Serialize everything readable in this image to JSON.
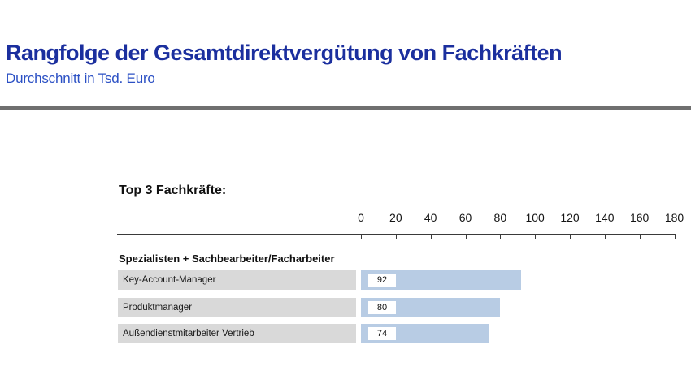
{
  "header": {
    "title": "Rangfolge der Gesamtdirektvergütung von Fachkräften",
    "subtitle": "Durchschnitt in Tsd. Euro"
  },
  "section": {
    "heading": "Top 3 Fachkräfte:",
    "group_label": "Spezialisten + Sachbearbeiter/Facharbeiter"
  },
  "chart_data": {
    "type": "bar",
    "orientation": "horizontal",
    "title": "Top 3 Fachkräfte",
    "group": "Spezialisten + Sachbearbeiter/Facharbeiter",
    "categories": [
      "Key-Account-Manager",
      "Produktmanager",
      "Außendienstmitarbeiter Vertrieb"
    ],
    "values": [
      92,
      80,
      74
    ],
    "unit": "Tsd. Euro",
    "xlabel": "",
    "ylabel": "",
    "xlim": [
      0,
      180
    ],
    "x_ticks": [
      0,
      20,
      40,
      60,
      80,
      100,
      120,
      140,
      160,
      180
    ],
    "grid": false,
    "legend": false
  },
  "colors": {
    "title_blue": "#1b2f9e",
    "subtitle_blue": "#2b50c4",
    "bar_blue": "#b8cce4",
    "label_gray": "#d9d9d9",
    "divider_gray": "#6f6f6f"
  }
}
